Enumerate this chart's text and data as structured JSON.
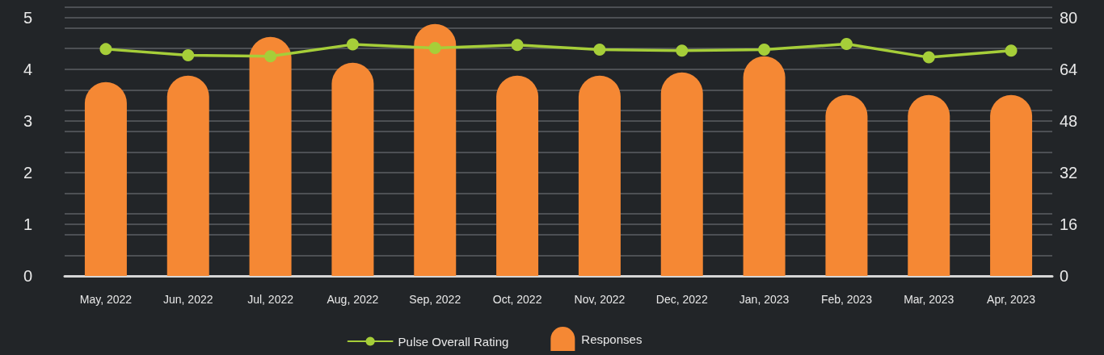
{
  "chart_data": {
    "type": "bar",
    "categories": [
      "May, 2022",
      "Jun, 2022",
      "Jul, 2022",
      "Aug, 2022",
      "Sep, 2022",
      "Oct, 2022",
      "Nov, 2022",
      "Dec, 2022",
      "Jan, 2023",
      "Feb, 2023",
      "Mar, 2023",
      "Apr, 2023"
    ],
    "series": [
      {
        "name": "Pulse Overall Rating",
        "type": "line",
        "color": "#a6ce39",
        "values": [
          4.39,
          4.27,
          4.25,
          4.48,
          4.41,
          4.47,
          4.38,
          4.36,
          4.38,
          4.49,
          4.23,
          4.36
        ]
      },
      {
        "name": "Responses",
        "axis": "y2",
        "color": "#f58834",
        "values": [
          60,
          62,
          74,
          66,
          78,
          62,
          62,
          63,
          68,
          56,
          56,
          56
        ]
      }
    ],
    "ylim": [
      0,
      5.2
    ],
    "yticks": [
      0,
      {
        "value": 0.4,
        "label": null
      },
      {
        "value": 0.8,
        "label": null
      },
      1,
      {
        "value": 1.2,
        "label": null
      },
      {
        "value": 1.6,
        "label": null
      },
      2,
      {
        "value": 2.4,
        "label": null
      },
      {
        "value": 2.8,
        "label": null
      },
      3,
      {
        "value": 3.2,
        "label": null
      },
      {
        "value": 3.6,
        "label": null
      },
      4,
      {
        "value": 4.4,
        "label": null
      },
      {
        "value": 4.8,
        "label": null
      },
      5,
      {
        "value": 5.2,
        "label": null
      }
    ],
    "y2lim": [
      0,
      83.2
    ],
    "y2ticks": [
      0,
      16,
      32,
      48,
      64,
      80
    ],
    "grid": "y",
    "legend": "bottom",
    "marker": "circle"
  }
}
